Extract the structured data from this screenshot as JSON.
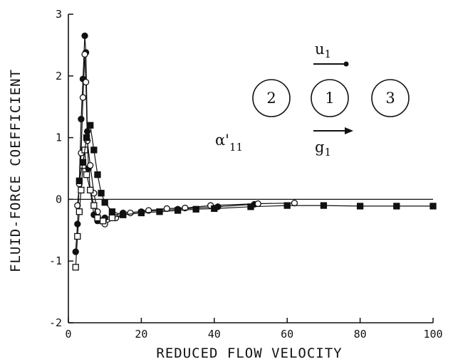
{
  "chart_data": {
    "type": "scatter",
    "title": "",
    "xlabel": "REDUCED FLOW VELOCITY",
    "ylabel": "FLUID-FORCE COEFFICIENT",
    "xlim": [
      0,
      100
    ],
    "ylim": [
      -2,
      3
    ],
    "xticks": [
      0,
      20,
      40,
      60,
      80,
      100
    ],
    "yticks": [
      -2,
      -1,
      0,
      1,
      2,
      3
    ],
    "grid": false,
    "zero_line": true,
    "series": [
      {
        "marker": "filled-circle",
        "x": [
          2,
          2.5,
          3,
          3.5,
          4,
          4.5,
          4.8,
          5.2,
          5.5,
          6,
          7,
          8,
          10,
          15,
          20,
          30,
          41,
          51
        ],
        "y": [
          -0.85,
          -0.4,
          0.3,
          1.3,
          1.95,
          2.65,
          2.38,
          1.1,
          0.5,
          0.15,
          -0.25,
          -0.35,
          -0.3,
          -0.22,
          -0.2,
          -0.16,
          -0.12,
          -0.08
        ]
      },
      {
        "marker": "open-circle",
        "x": [
          2.5,
          3,
          3.5,
          4,
          4.5,
          4.8,
          5.2,
          6,
          7,
          8,
          10,
          13,
          17,
          22,
          27,
          32,
          39,
          52,
          62
        ],
        "y": [
          -0.1,
          0.25,
          0.75,
          1.65,
          2.35,
          1.9,
          0.95,
          0.55,
          0.1,
          -0.2,
          -0.4,
          -0.3,
          -0.22,
          -0.18,
          -0.15,
          -0.14,
          -0.1,
          -0.07,
          -0.06
        ]
      },
      {
        "marker": "open-square",
        "x": [
          2,
          2.5,
          3,
          3.5,
          4,
          4.5,
          5,
          6,
          7,
          8,
          9.5,
          12,
          15
        ],
        "y": [
          -1.1,
          -0.6,
          -0.2,
          0.15,
          0.55,
          0.8,
          0.4,
          0.15,
          -0.1,
          -0.3,
          -0.35,
          -0.3,
          -0.25
        ]
      },
      {
        "marker": "filled-square",
        "x": [
          3,
          4,
          5,
          6,
          7,
          8,
          9,
          10,
          12,
          15,
          20,
          25,
          30,
          35,
          40,
          50,
          60,
          70,
          80,
          90,
          100
        ],
        "y": [
          0.3,
          0.6,
          1.0,
          1.2,
          0.8,
          0.4,
          0.1,
          -0.05,
          -0.2,
          -0.25,
          -0.22,
          -0.2,
          -0.18,
          -0.16,
          -0.15,
          -0.12,
          -0.1,
          -0.1,
          -0.11,
          -0.11,
          -0.11
        ]
      }
    ],
    "inset": {
      "cylinders": [
        "2",
        "1",
        "3"
      ],
      "u_label": "u",
      "u_sub": "1",
      "g_label": "g",
      "g_sub": "1",
      "alpha_label": "α'",
      "alpha_sub": "11"
    }
  }
}
